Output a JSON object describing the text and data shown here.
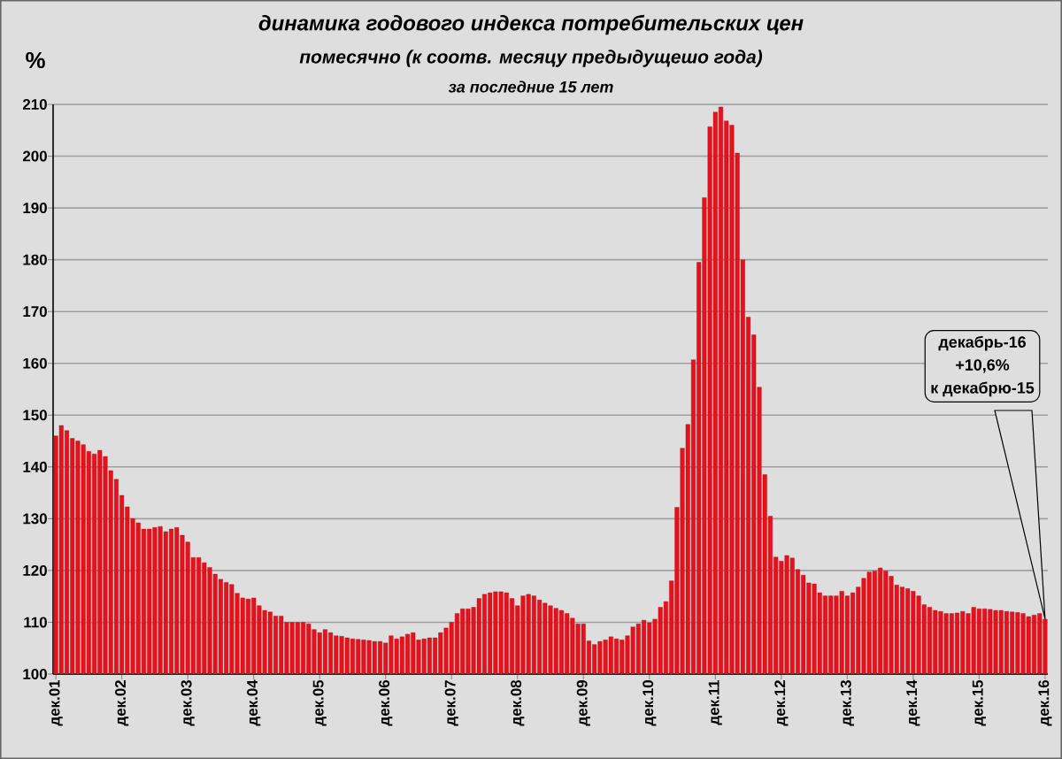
{
  "chart_data": {
    "type": "bar",
    "title": "динамика годового индекса потребительских цен",
    "subtitle": "помесячно (к соотв. месяцу предыдущешо года)",
    "ylabel": "%",
    "categories": [
      "дек.01",
      null,
      null,
      null,
      null,
      null,
      null,
      null,
      null,
      null,
      null,
      null,
      "дек.02",
      null,
      null,
      null,
      null,
      null,
      null,
      null,
      null,
      null,
      null,
      null,
      "дек.03",
      null,
      null,
      null,
      null,
      null,
      null,
      null,
      null,
      null,
      null,
      null,
      "дек.04",
      null,
      null,
      null,
      null,
      null,
      null,
      null,
      null,
      null,
      null,
      null,
      "дек.05",
      null,
      null,
      null,
      null,
      null,
      null,
      null,
      null,
      null,
      null,
      null,
      "дек.06",
      null,
      null,
      null,
      null,
      null,
      null,
      null,
      null,
      null,
      null,
      null,
      "дек.07",
      null,
      null,
      null,
      null,
      null,
      null,
      null,
      null,
      null,
      null,
      null,
      "дек.08",
      null,
      null,
      null,
      null,
      null,
      null,
      null,
      null,
      null,
      null,
      null,
      "дек.09",
      null,
      null,
      null,
      null,
      null,
      null,
      null,
      null,
      null,
      null,
      null,
      "дек.10",
      null,
      null,
      null,
      null,
      null,
      null,
      null,
      null,
      null,
      null,
      null,
      "дек.11",
      null,
      null,
      null,
      null,
      null,
      null,
      null,
      null,
      null,
      null,
      null,
      "дек.12",
      null,
      null,
      null,
      null,
      null,
      null,
      null,
      null,
      null,
      null,
      null,
      "дек.13",
      null,
      null,
      null,
      null,
      null,
      null,
      null,
      null,
      null,
      null,
      null,
      "дек.14",
      null,
      null,
      null,
      null,
      null,
      null,
      null,
      null,
      null,
      null,
      null,
      "дек.15",
      null,
      null,
      null,
      null,
      null,
      null,
      null,
      null,
      null,
      null,
      null,
      "дек.16"
    ],
    "values": [
      146,
      148,
      147,
      145.5,
      145,
      144.3,
      143,
      142.5,
      143.2,
      142,
      139.3,
      137.6,
      134.5,
      132.3,
      130,
      129.2,
      128,
      128,
      128.3,
      128.5,
      127.5,
      128,
      128.3,
      126.8,
      125.5,
      122.5,
      122.5,
      121.5,
      120.6,
      119.3,
      118.3,
      117.7,
      117.3,
      115.6,
      114.7,
      114.5,
      114.7,
      113.2,
      112.3,
      112,
      111.2,
      111.2,
      110,
      110,
      110,
      110,
      109.7,
      108.6,
      108,
      108.6,
      108,
      107.4,
      107.3,
      107,
      106.8,
      106.7,
      106.6,
      106.5,
      106.3,
      106.3,
      106,
      107.4,
      106.8,
      107.2,
      107.7,
      108,
      106.6,
      106.8,
      107,
      107,
      108,
      108.9,
      110,
      111.7,
      112.6,
      112.6,
      112.9,
      114.6,
      115.4,
      115.7,
      115.9,
      115.9,
      115.7,
      114.6,
      113.2,
      115.1,
      115.4,
      115.1,
      114.3,
      113.7,
      113.2,
      112.7,
      112.3,
      111.7,
      110.8,
      109.7,
      109.7,
      106.4,
      105.7,
      106.3,
      106.6,
      107.2,
      106.8,
      106.6,
      107.4,
      109.1,
      109.7,
      110.4,
      109.9,
      110.6,
      112.9,
      114,
      118,
      132.2,
      143.6,
      148.2,
      160.7,
      179.5,
      192,
      205.7,
      208.5,
      209.5,
      206.8,
      206,
      200.6,
      180,
      168.9,
      165.5,
      155.4,
      138.5,
      130.5,
      122.6,
      121.8,
      122.9,
      122.4,
      120.2,
      119.1,
      117.6,
      117.4,
      115.7,
      115.1,
      115.1,
      115.1,
      116,
      115.1,
      115.7,
      116.8,
      118.5,
      119.7,
      119.9,
      120.5,
      119.9,
      118.9,
      117.2,
      116.8,
      116.5,
      116,
      115.1,
      113.4,
      112.9,
      112.3,
      112.1,
      111.7,
      111.7,
      111.8,
      112.1,
      111.7,
      112.9,
      112.6,
      112.6,
      112.5,
      112.3,
      112.3,
      112.1,
      112,
      111.9,
      111.7,
      111.1,
      111.4,
      111.7,
      110.6
    ],
    "color": "#e8101a",
    "ylim": [
      100,
      210
    ],
    "yticks": [
      100,
      110,
      120,
      130,
      140,
      150,
      160,
      170,
      180,
      190,
      200,
      210
    ],
    "grid": "y",
    "annotations": [
      "за последние 15 лет",
      "декабрь-16",
      "+10,6%",
      "к декабрю-15"
    ]
  }
}
